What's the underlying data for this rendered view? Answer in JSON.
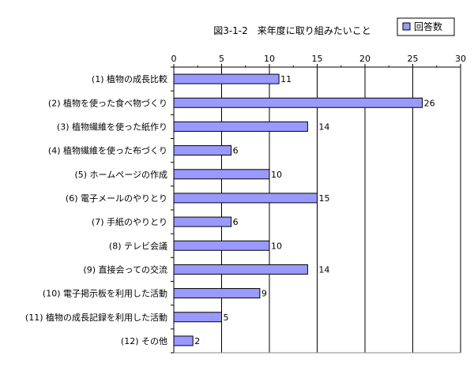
{
  "chart_data": {
    "type": "bar",
    "orientation": "horizontal",
    "title": "図3-1-2　来年度に取り組みたいこと",
    "categories": [
      "(1) 植物の成長比較",
      "(2) 植物を使った食べ物づくり",
      "(3) 植物繊維を使った紙作り",
      "(4) 植物繊維を使った布づくり",
      "(5) ホームページの作成",
      "(6) 電子メールのやりとり",
      "(7) 手紙のやりとり",
      "(8) テレビ会議",
      "(9) 直接会っての交流",
      "(10) 電子掲示板を利用した活動",
      "(11) 植物の成長記録を利用した活動",
      "(12) その他"
    ],
    "series": [
      {
        "name": "回答数",
        "values": [
          11,
          26,
          14,
          6,
          10,
          15,
          6,
          10,
          14,
          9,
          5,
          2
        ]
      }
    ],
    "xlim": [
      0,
      30
    ],
    "xticks": [
      0,
      5,
      10,
      15,
      20,
      25,
      30
    ],
    "grid": true,
    "legend_position": "top-right",
    "colors": {
      "bar": "#9999ff",
      "bar_stroke": "#000000",
      "grid": "#000000"
    }
  }
}
